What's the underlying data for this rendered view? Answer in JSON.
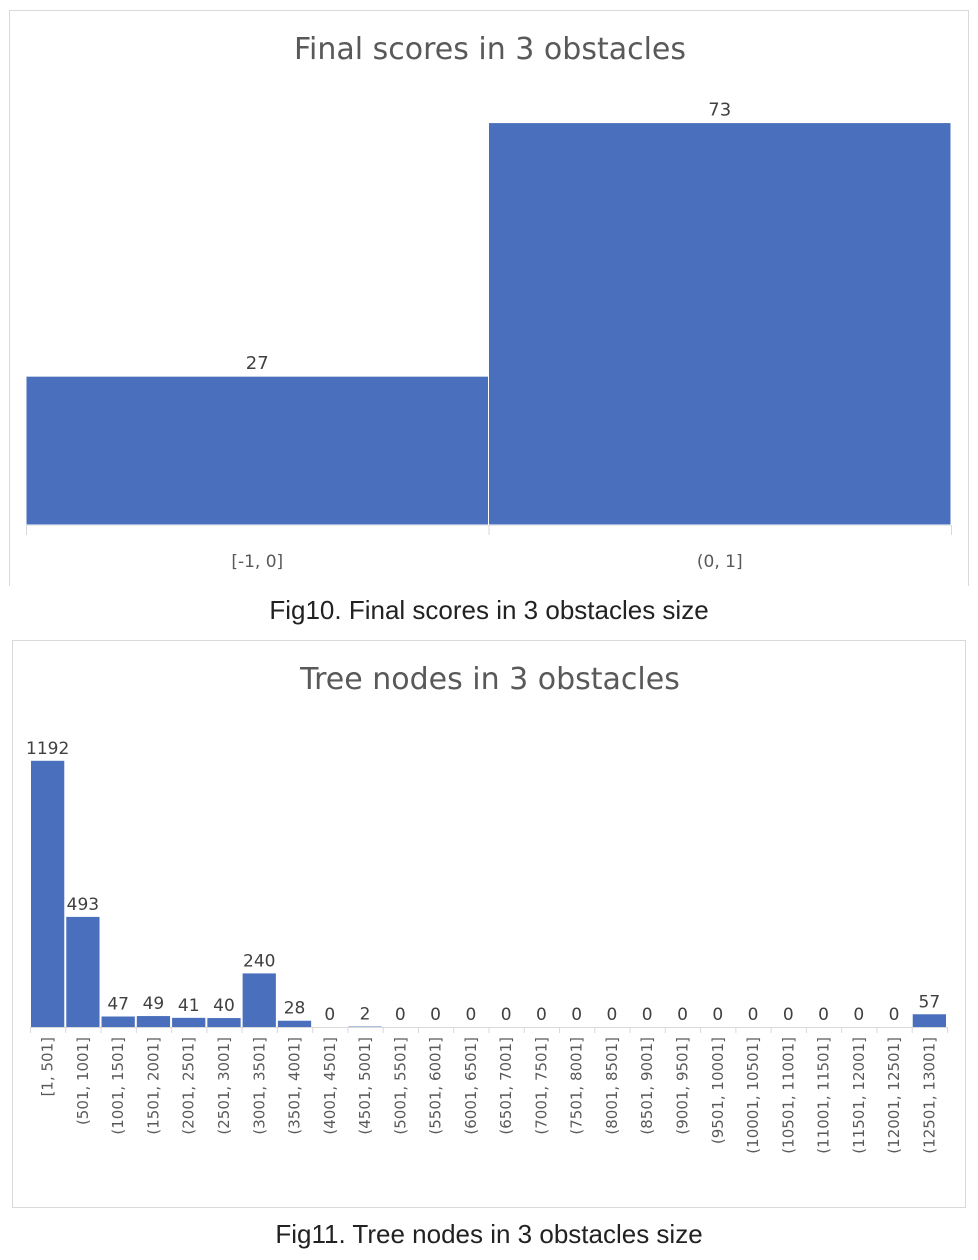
{
  "chart_data": [
    {
      "type": "bar",
      "title": "Final scores in 3 obstacles",
      "xlabel": "",
      "ylabel": "",
      "categories": [
        "[-1, 0]",
        "(0, 1]"
      ],
      "values": [
        27,
        73
      ],
      "ylim": [
        0,
        80
      ],
      "grid": false,
      "bar_color": "#4a70bd",
      "data_labels": true
    },
    {
      "type": "bar",
      "title": "Tree nodes in 3 obstacles",
      "xlabel": "",
      "ylabel": "",
      "categories": [
        "[1, 501]",
        "(501, 1001]",
        "(1001, 1501]",
        "(1501, 2001]",
        "(2001, 2501]",
        "(2501, 3001]",
        "(3001, 3501]",
        "(3501, 4001]",
        "(4001, 4501]",
        "(4501, 5001]",
        "(5001, 5501]",
        "(5501, 6001]",
        "(6001, 6501]",
        "(6501, 7001]",
        "(7001, 7501]",
        "(7501, 8001]",
        "(8001, 8501]",
        "(8501, 9001]",
        "(9001, 9501]",
        "(9501, 10001]",
        "(10001, 10501]",
        "(10501, 11001]",
        "(11001, 11501]",
        "(11501, 12001]",
        "(12001, 12501]",
        "(12501, 13001]"
      ],
      "values": [
        1192,
        493,
        47,
        49,
        41,
        40,
        240,
        28,
        0,
        2,
        0,
        0,
        0,
        0,
        0,
        0,
        0,
        0,
        0,
        0,
        0,
        0,
        0,
        0,
        0,
        57
      ],
      "ylim": [
        0,
        1200
      ],
      "grid": false,
      "bar_color": "#4a70bd",
      "data_labels": true
    }
  ],
  "captions": {
    "fig10": "Fig10. Final scores in 3 obstacles size",
    "fig11": "Fig11. Tree nodes in 3 obstacles size"
  }
}
